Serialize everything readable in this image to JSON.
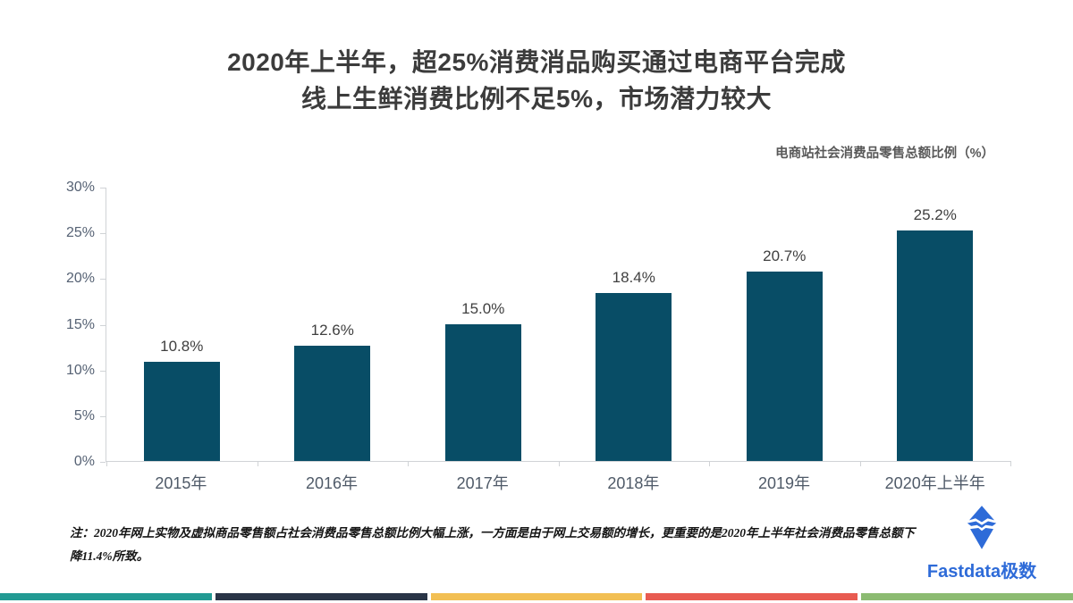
{
  "title": {
    "line1": "2020年上半年，超25%消费消品购买通过电商平台完成",
    "line2": "线上生鲜消费比例不足5%，市场潜力较大"
  },
  "legend": {
    "label": "电商站社会消费品零售总额比例（%）"
  },
  "chart_data": {
    "type": "bar",
    "title": "电商站社会消费品零售总额比例（%）",
    "categories": [
      "2015年",
      "2016年",
      "2017年",
      "2018年",
      "2019年",
      "2020年上半年"
    ],
    "values": [
      10.8,
      12.6,
      15.0,
      18.4,
      20.7,
      25.2
    ],
    "value_labels": [
      "10.8%",
      "12.6%",
      "15.0%",
      "18.4%",
      "20.7%",
      "25.2%"
    ],
    "xlabel": "",
    "ylabel": "",
    "ylim": [
      0,
      30
    ],
    "ytick_step": 5,
    "yticks": [
      "0%",
      "5%",
      "10%",
      "15%",
      "20%",
      "25%",
      "30%"
    ],
    "grid": false,
    "legend_position": "top-right",
    "bar_color": "#084d66"
  },
  "note": {
    "text": "注：2020年网上实物及虚拟商品零售额占社会消费品零售总额比例大幅上涨，一方面是由于网上交易额的增长，更重要的是2020年上半年社会消费品零售总额下降11.4%所致。"
  },
  "logo": {
    "text": "Fastdata极数",
    "color": "#2e6bd8"
  },
  "footer_stripe": {
    "colors": [
      "#229a93",
      "#2a3547",
      "#f2bf53",
      "#e85b51",
      "#8cbb72"
    ]
  }
}
